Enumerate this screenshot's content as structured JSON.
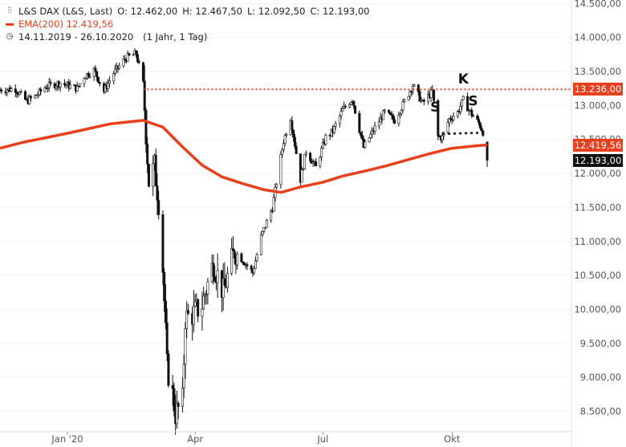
{
  "legend": {
    "symbol": "L&S DAX (L&S, Last)",
    "open": "O: 12.462,00",
    "high": "H: 12.467,50",
    "low": "L: 12.092,50",
    "close": "C: 12.193,00",
    "ema": "EMA(200)  12.419,56",
    "range": "14.11.2019 - 26.10.2020",
    "span": "(1 Jahr, 1 Tag)"
  },
  "chart_data": {
    "type": "candlestick",
    "y_axis_position": "right",
    "ylim": [
      8200,
      14550
    ],
    "y_ticks": [
      8500,
      9000,
      9500,
      10000,
      10500,
      11000,
      11500,
      12000,
      12500,
      13000,
      13500,
      14000,
      14500
    ],
    "y_tick_labels": [
      "8.500,00",
      "9.000,00",
      "9.500,00",
      "10.000,00",
      "10.500,00",
      "11.000,00",
      "11.500,00",
      "12.000,00",
      "12.500,00",
      "13.000,00",
      "13.500,00",
      "14.000,00",
      "14.500,00"
    ],
    "x_ticks": [
      {
        "label": "Jan '20",
        "date": "2020-01-01"
      },
      {
        "label": "Apr",
        "date": "2020-04-01"
      },
      {
        "label": "Jul",
        "date": "2020-07-01"
      },
      {
        "label": "Okt",
        "date": "2020-10-01"
      }
    ],
    "x_range": [
      "2019-11-14",
      "2020-12-25"
    ],
    "price_path": [
      [
        "2019-11-14",
        13230
      ],
      [
        "2019-11-25",
        13240
      ],
      [
        "2019-12-03",
        13060
      ],
      [
        "2019-12-10",
        13150
      ],
      [
        "2019-12-17",
        13280
      ],
      [
        "2019-12-27",
        13330
      ],
      [
        "2020-01-08",
        13250
      ],
      [
        "2020-01-13",
        13430
      ],
      [
        "2020-01-20",
        13520
      ],
      [
        "2020-01-27",
        13210
      ],
      [
        "2020-02-03",
        13480
      ],
      [
        "2020-02-12",
        13700
      ],
      [
        "2020-02-19",
        13760
      ],
      [
        "2020-02-24",
        13320
      ],
      [
        "2020-02-28",
        11880
      ],
      [
        "2020-03-03",
        12100
      ],
      [
        "2020-03-06",
        11590
      ],
      [
        "2020-03-09",
        10610
      ],
      [
        "2020-03-12",
        9160
      ],
      [
        "2020-03-16",
        8740
      ],
      [
        "2020-03-18",
        8460
      ],
      [
        "2020-03-23",
        8650
      ],
      [
        "2020-03-25",
        9870
      ],
      [
        "2020-03-31",
        9940
      ],
      [
        "2020-04-06",
        10070
      ],
      [
        "2020-04-14",
        10690
      ],
      [
        "2020-04-21",
        10250
      ],
      [
        "2020-04-29",
        10860
      ],
      [
        "2020-05-05",
        10720
      ],
      [
        "2020-05-12",
        10540
      ],
      [
        "2020-05-18",
        11070
      ],
      [
        "2020-05-26",
        11500
      ],
      [
        "2020-06-03",
        12480
      ],
      [
        "2020-06-08",
        12820
      ],
      [
        "2020-06-15",
        11910
      ],
      [
        "2020-06-19",
        12330
      ],
      [
        "2020-06-26",
        12090
      ],
      [
        "2020-07-03",
        12530
      ],
      [
        "2020-07-08",
        12620
      ],
      [
        "2020-07-15",
        12930
      ],
      [
        "2020-07-22",
        13100
      ],
      [
        "2020-07-30",
        12380
      ],
      [
        "2020-08-07",
        12670
      ],
      [
        "2020-08-14",
        12900
      ],
      [
        "2020-08-21",
        12780
      ],
      [
        "2020-08-28",
        13050
      ],
      [
        "2020-09-03",
        13300
      ],
      [
        "2020-09-10",
        13030
      ],
      [
        "2020-09-17",
        13210
      ],
      [
        "2020-09-21",
        12540
      ],
      [
        "2020-09-24",
        12530
      ],
      [
        "2020-09-29",
        12800
      ],
      [
        "2020-10-05",
        12900
      ],
      [
        "2020-10-09",
        13080
      ],
      [
        "2020-10-14",
        12900
      ],
      [
        "2020-10-20",
        12740
      ],
      [
        "2020-10-23",
        12610
      ],
      [
        "2020-10-26",
        12193
      ]
    ],
    "ema_name": "EMA(200)",
    "ema": [
      [
        "2019-11-14",
        12370
      ],
      [
        "2019-12-01",
        12460
      ],
      [
        "2020-01-01",
        12590
      ],
      [
        "2020-02-01",
        12730
      ],
      [
        "2020-02-24",
        12780
      ],
      [
        "2020-03-09",
        12680
      ],
      [
        "2020-03-23",
        12390
      ],
      [
        "2020-04-06",
        12120
      ],
      [
        "2020-04-20",
        11950
      ],
      [
        "2020-05-05",
        11850
      ],
      [
        "2020-05-20",
        11760
      ],
      [
        "2020-06-01",
        11720
      ],
      [
        "2020-06-15",
        11800
      ],
      [
        "2020-07-01",
        11870
      ],
      [
        "2020-07-15",
        11960
      ],
      [
        "2020-08-01",
        12040
      ],
      [
        "2020-08-15",
        12110
      ],
      [
        "2020-09-01",
        12210
      ],
      [
        "2020-09-15",
        12290
      ],
      [
        "2020-10-01",
        12370
      ],
      [
        "2020-10-15",
        12400
      ],
      [
        "2020-10-26",
        12420
      ]
    ],
    "resistance": {
      "value": 13236,
      "from": "2020-02-24"
    },
    "neckline": {
      "from": [
        "2020-09-24",
        12580
      ],
      "to": [
        "2020-10-26",
        12600
      ]
    },
    "annotations": [
      {
        "text": "S",
        "date": "2020-09-19",
        "value": 12910
      },
      {
        "text": "K",
        "date": "2020-10-09",
        "value": 13320
      },
      {
        "text": "S",
        "date": "2020-10-16",
        "value": 13000
      }
    ],
    "price_tags": [
      {
        "value": 13236,
        "label": "13.236,00",
        "color": "#e8401c"
      },
      {
        "value": 12419.56,
        "label": "12.419,56",
        "color": "#e8401c"
      },
      {
        "value": 12193,
        "label": "12.193,00",
        "color": "#111111"
      }
    ],
    "colors": {
      "candles": "#111111",
      "ema": "#e8401c",
      "resistance": "#e8401c"
    }
  }
}
